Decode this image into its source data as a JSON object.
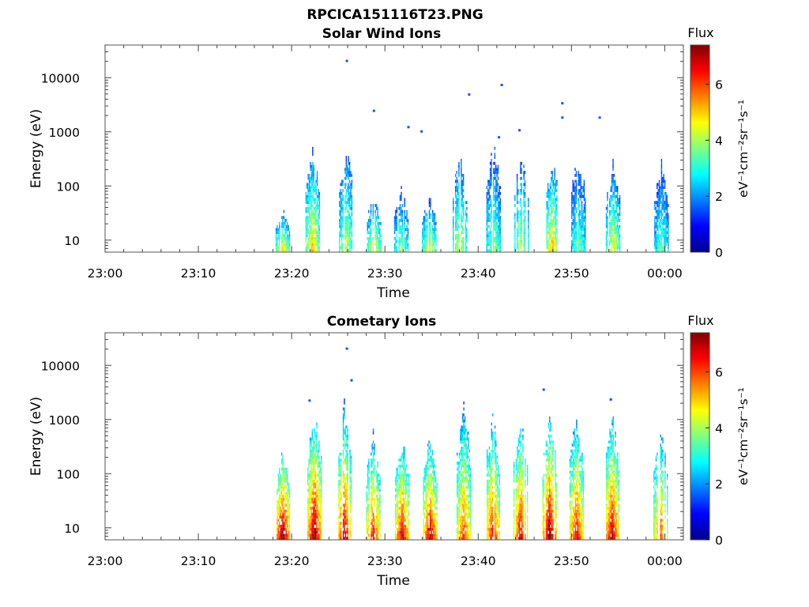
{
  "figure_title": "RPCICA151116T23.PNG",
  "chart_data": [
    {
      "type": "heatmap",
      "title": "Solar Wind Ions",
      "xlabel": "Time",
      "ylabel": "Energy (eV)",
      "x_ticks": [
        "23:00",
        "23:10",
        "23:20",
        "23:30",
        "23:40",
        "23:50",
        "00:00"
      ],
      "x_range_minutes": [
        0,
        62
      ],
      "y_ticks": [
        "10",
        "100",
        "1000",
        "10000"
      ],
      "y_scale": "log",
      "y_range": [
        6,
        40000
      ],
      "colorbar": {
        "label": "Flux",
        "units": "eV⁻¹cm⁻²sr⁻¹s⁻¹",
        "ticks": [
          "0",
          "2",
          "4",
          "6"
        ],
        "range": [
          0,
          7.4
        ],
        "colormap": "jet"
      },
      "bursts": [
        {
          "t": 19.0,
          "flux_low": 4.0,
          "emax": 35
        },
        {
          "t": 22.2,
          "flux_low": 4.3,
          "emax": 550
        },
        {
          "t": 25.8,
          "flux_low": 3.6,
          "emax": 650
        },
        {
          "t": 28.8,
          "flux_low": 3.9,
          "emax": 70
        },
        {
          "t": 31.7,
          "flux_low": 3.2,
          "emax": 90
        },
        {
          "t": 34.7,
          "flux_low": 3.8,
          "emax": 60
        },
        {
          "t": 38.0,
          "flux_low": 3.7,
          "emax": 450
        },
        {
          "t": 41.6,
          "flux_low": 3.3,
          "emax": 700
        },
        {
          "t": 44.6,
          "flux_low": 3.6,
          "emax": 450
        },
        {
          "t": 47.9,
          "flux_low": 4.4,
          "emax": 300
        },
        {
          "t": 50.7,
          "flux_low": 3.1,
          "emax": 400
        },
        {
          "t": 54.4,
          "flux_low": 3.9,
          "emax": 250
        },
        {
          "t": 59.6,
          "flux_low": 3.0,
          "emax": 300
        }
      ],
      "isolated_points": [
        {
          "t": 25.8,
          "e": 20000
        },
        {
          "t": 28.7,
          "e": 2400
        },
        {
          "t": 32.4,
          "e": 1200
        },
        {
          "t": 33.8,
          "e": 1000
        },
        {
          "t": 38.9,
          "e": 4800
        },
        {
          "t": 42.4,
          "e": 7200
        },
        {
          "t": 44.3,
          "e": 1050
        },
        {
          "t": 48.9,
          "e": 3300
        },
        {
          "t": 48.9,
          "e": 1800
        },
        {
          "t": 52.9,
          "e": 1800
        },
        {
          "t": 42.1,
          "e": 780
        }
      ]
    },
    {
      "type": "heatmap",
      "title": "Cometary Ions",
      "xlabel": "Time",
      "ylabel": "Energy (eV)",
      "x_ticks": [
        "23:00",
        "23:10",
        "23:20",
        "23:30",
        "23:40",
        "23:50",
        "00:00"
      ],
      "x_range_minutes": [
        0,
        62
      ],
      "y_ticks": [
        "10",
        "100",
        "1000",
        "10000"
      ],
      "y_scale": "log",
      "y_range": [
        6,
        40000
      ],
      "colorbar": {
        "label": "Flux",
        "units": "eV⁻¹cm⁻²sr⁻¹s⁻¹",
        "ticks": [
          "0",
          "2",
          "4",
          "6"
        ],
        "range": [
          0,
          7.4
        ],
        "colormap": "jet"
      },
      "bursts": [
        {
          "t": 19.0,
          "flux_low": 6.4,
          "emax": 350
        },
        {
          "t": 22.4,
          "flux_low": 6.3,
          "emax": 1500
        },
        {
          "t": 25.6,
          "flux_low": 5.9,
          "emax": 1700
        },
        {
          "t": 28.7,
          "flux_low": 5.6,
          "emax": 550
        },
        {
          "t": 31.8,
          "flux_low": 5.9,
          "emax": 500
        },
        {
          "t": 34.8,
          "flux_low": 6.0,
          "emax": 500
        },
        {
          "t": 38.4,
          "flux_low": 5.3,
          "emax": 1900
        },
        {
          "t": 41.5,
          "flux_low": 5.6,
          "emax": 1300
        },
        {
          "t": 44.5,
          "flux_low": 5.8,
          "emax": 1200
        },
        {
          "t": 47.6,
          "flux_low": 6.4,
          "emax": 1300
        },
        {
          "t": 50.5,
          "flux_low": 5.7,
          "emax": 1200
        },
        {
          "t": 54.3,
          "flux_low": 6.0,
          "emax": 1300
        },
        {
          "t": 59.5,
          "flux_low": 5.1,
          "emax": 800
        }
      ],
      "isolated_points": [
        {
          "t": 25.8,
          "e": 20000
        },
        {
          "t": 26.3,
          "e": 5200
        },
        {
          "t": 46.9,
          "e": 3500
        },
        {
          "t": 54.1,
          "e": 2300
        },
        {
          "t": 21.8,
          "e": 2200
        }
      ]
    }
  ]
}
